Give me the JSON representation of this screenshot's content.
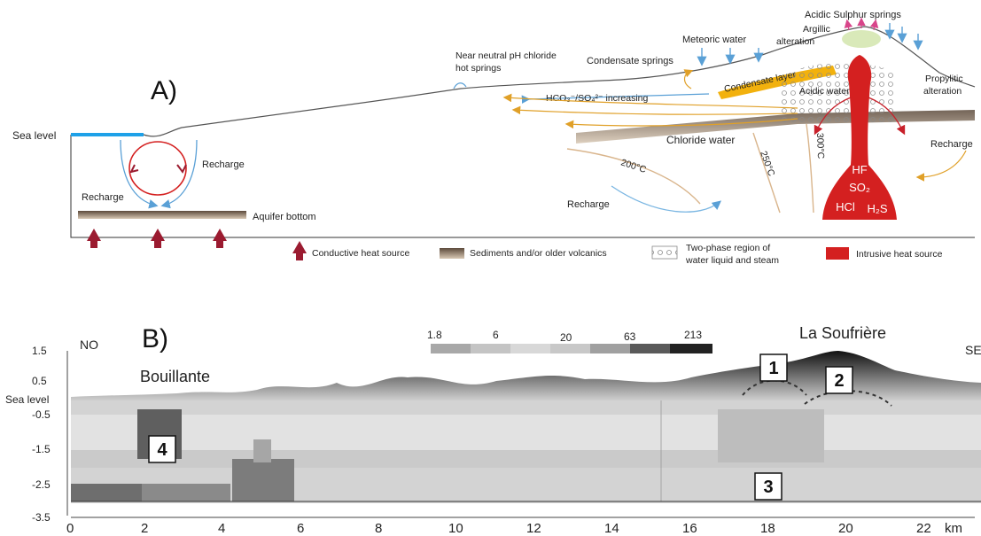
{
  "panel_a": {
    "label": "A)",
    "sea_level": "Sea level",
    "recharge_left_1": "Recharge",
    "recharge_left_2": "Recharge",
    "recharge_right": "Recharge",
    "recharge_bottom": "Recharge",
    "aquifer_bottom": "Aquifer bottom",
    "near_neutral_1": "Near neutral pH chloride",
    "near_neutral_2": "hot springs",
    "condensate_springs": "Condensate springs",
    "meteoric_water": "Meteoric water",
    "acidic_sulphur": "Acidic Sulphur springs",
    "argillic_1": "Argillic",
    "argillic_2": "alteration",
    "propylitic_1": "Propylitic",
    "propylitic_2": "alteration",
    "condensate_layer": "Condensate layer",
    "hco3": "HCO₃⁻/SO₄²⁻ increasing",
    "acidic_water": "Acidic water",
    "chloride_water": "Chloride water",
    "t200": "200°C",
    "t250": "250°C",
    "t300": "300°C",
    "gas_hf": "HF",
    "gas_so2": "SO₂",
    "gas_hcl": "HCl",
    "gas_h2s": "H₂S",
    "legend": {
      "conductive": "Conductive heat source",
      "sediments": "Sediments and/or older volcanics",
      "two_phase_1": "Two-phase region of",
      "two_phase_2": "water liquid and steam",
      "intrusive": "Intrusive heat source"
    }
  },
  "panel_b": {
    "label": "B)",
    "no": "NO",
    "se": "SE",
    "bouillante": "Bouillante",
    "la_soufriere": "La Soufrière",
    "y_ticks": [
      "1.5",
      "0.5",
      "Sea level",
      "-0.5",
      "-1.5",
      "-2.5",
      "-3.5"
    ],
    "x_ticks": [
      "0",
      "2",
      "4",
      "6",
      "8",
      "10",
      "12",
      "14",
      "16",
      "18",
      "20",
      "22"
    ],
    "x_unit": "km",
    "colorbar_ticks": [
      "1.8",
      "6",
      "20",
      "63",
      "213"
    ],
    "markers": [
      "1",
      "2",
      "3",
      "4"
    ]
  },
  "colors": {
    "heat_arrow": "#9b1b30",
    "intrusion": "#d42020",
    "sea": "#1ea1e8",
    "sediment": "#9a8066",
    "condensate": "#f2b10d",
    "meteoric": "#5aa0d6"
  }
}
